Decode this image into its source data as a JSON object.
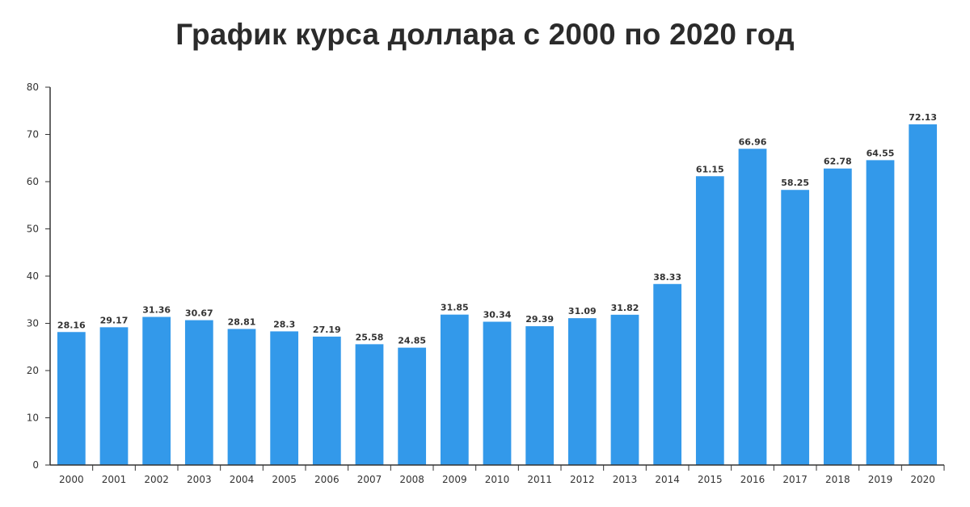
{
  "chart_data": {
    "type": "bar",
    "title": "График курса доллара с 2000 по 2020 год",
    "xlabel": "",
    "ylabel": "",
    "categories": [
      "2000",
      "2001",
      "2002",
      "2003",
      "2004",
      "2005",
      "2006",
      "2007",
      "2008",
      "2009",
      "2010",
      "2011",
      "2012",
      "2013",
      "2014",
      "2015",
      "2016",
      "2017",
      "2018",
      "2019",
      "2020"
    ],
    "values": [
      28.16,
      29.17,
      31.36,
      30.67,
      28.81,
      28.3,
      27.19,
      25.58,
      24.85,
      31.85,
      30.34,
      29.39,
      31.09,
      31.82,
      38.33,
      61.15,
      66.96,
      58.25,
      62.78,
      64.55,
      72.13
    ],
    "value_labels": [
      "28.16",
      "29.17",
      "31.36",
      "30.67",
      "28.81",
      "28.3",
      "27.19",
      "25.58",
      "24.85",
      "31.85",
      "30.34",
      "29.39",
      "31.09",
      "31.82",
      "38.33",
      "61.15",
      "66.96",
      "58.25",
      "62.78",
      "64.55",
      "72.13"
    ],
    "ylim": [
      0,
      80
    ],
    "yticks": [
      0,
      10,
      20,
      30,
      40,
      50,
      60,
      70,
      80
    ],
    "grid": false,
    "legend": "none",
    "colors": {
      "bar": "#3399ea",
      "axis": "#333333",
      "text": "#333333",
      "title": "#2b2b2b"
    }
  }
}
